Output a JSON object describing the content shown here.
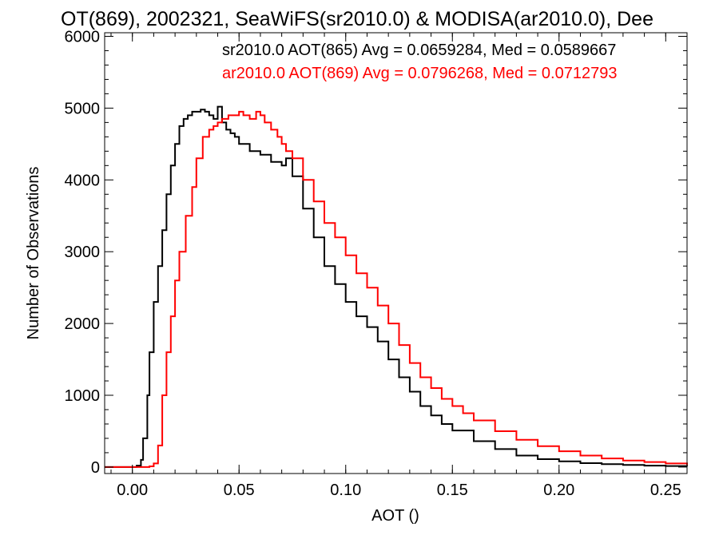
{
  "chart_data": {
    "type": "line",
    "step": true,
    "title": "OT(869), 2002321, SeaWiFS(sr2010.0) & MODISA(ar2010.0), Dee",
    "xlabel": "AOT ()",
    "ylabel": "Number of Observations",
    "xlim": [
      -0.013,
      0.26
    ],
    "ylim": [
      -90,
      6050
    ],
    "xticks": [
      0.0,
      0.05,
      0.1,
      0.15,
      0.2,
      0.25
    ],
    "xtick_labels": [
      "0.00",
      "0.05",
      "0.10",
      "0.15",
      "0.20",
      "0.25"
    ],
    "yticks": [
      0,
      1000,
      2000,
      3000,
      4000,
      5000,
      6000
    ],
    "ytick_labels": [
      "0",
      "1000",
      "2000",
      "3000",
      "4000",
      "5000",
      "6000"
    ],
    "grid": false,
    "legend_position": "top-right",
    "series": [
      {
        "label": "sr2010.0 AOT(865) Avg = 0.0659284, Med = 0.0589667",
        "color": "#000000",
        "x": [
          -0.013,
          0.0,
          0.002,
          0.004,
          0.005,
          0.007,
          0.008,
          0.01,
          0.012,
          0.014,
          0.016,
          0.018,
          0.02,
          0.022,
          0.024,
          0.026,
          0.028,
          0.03,
          0.032,
          0.034,
          0.036,
          0.038,
          0.04,
          0.042,
          0.044,
          0.046,
          0.048,
          0.05,
          0.055,
          0.06,
          0.065,
          0.07,
          0.072,
          0.075,
          0.08,
          0.085,
          0.09,
          0.095,
          0.1,
          0.105,
          0.11,
          0.115,
          0.12,
          0.125,
          0.13,
          0.135,
          0.14,
          0.145,
          0.15,
          0.16,
          0.17,
          0.18,
          0.19,
          0.2,
          0.21,
          0.22,
          0.23,
          0.24,
          0.25,
          0.26
        ],
        "y": [
          0,
          0,
          20,
          100,
          400,
          1000,
          1600,
          2300,
          2800,
          3300,
          3800,
          4200,
          4500,
          4750,
          4850,
          4900,
          4950,
          4950,
          4980,
          4950,
          4900,
          4850,
          5020,
          4800,
          4700,
          4650,
          4600,
          4500,
          4400,
          4350,
          4250,
          4200,
          4300,
          4050,
          3600,
          3200,
          2800,
          2550,
          2300,
          2100,
          1950,
          1750,
          1500,
          1250,
          1050,
          850,
          720,
          600,
          510,
          360,
          250,
          160,
          110,
          80,
          55,
          40,
          30,
          20,
          15,
          10
        ]
      },
      {
        "label": "ar2010.0 AOT(869) Avg = 0.0796268, Med = 0.0712793",
        "color": "#ff0000",
        "x": [
          -0.013,
          0.005,
          0.008,
          0.01,
          0.012,
          0.014,
          0.016,
          0.018,
          0.02,
          0.022,
          0.025,
          0.028,
          0.03,
          0.033,
          0.036,
          0.038,
          0.04,
          0.042,
          0.045,
          0.048,
          0.05,
          0.052,
          0.055,
          0.058,
          0.06,
          0.062,
          0.065,
          0.068,
          0.07,
          0.072,
          0.075,
          0.08,
          0.085,
          0.09,
          0.095,
          0.1,
          0.105,
          0.11,
          0.115,
          0.12,
          0.125,
          0.13,
          0.135,
          0.14,
          0.145,
          0.15,
          0.155,
          0.16,
          0.17,
          0.18,
          0.19,
          0.2,
          0.21,
          0.22,
          0.23,
          0.24,
          0.25,
          0.26
        ],
        "y": [
          0,
          0,
          10,
          50,
          300,
          1000,
          1600,
          2100,
          2600,
          3000,
          3500,
          3900,
          4300,
          4600,
          4700,
          4750,
          4800,
          4850,
          4900,
          4900,
          4950,
          4900,
          4850,
          4950,
          4900,
          4800,
          4700,
          4600,
          4500,
          4400,
          4300,
          4000,
          3700,
          3400,
          3200,
          2950,
          2700,
          2500,
          2250,
          2000,
          1700,
          1450,
          1250,
          1100,
          950,
          850,
          750,
          650,
          500,
          380,
          290,
          220,
          160,
          120,
          90,
          70,
          50,
          30
        ]
      }
    ]
  }
}
